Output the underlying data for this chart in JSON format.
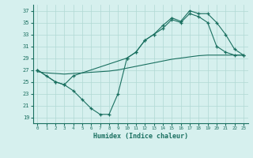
{
  "background_color": "#d6f0ee",
  "grid_color": "#b0d8d4",
  "line_color": "#1a7060",
  "xlim": [
    -0.5,
    23.5
  ],
  "ylim": [
    18.0,
    38.0
  ],
  "xticks": [
    0,
    1,
    2,
    3,
    4,
    5,
    6,
    7,
    8,
    9,
    10,
    11,
    12,
    13,
    14,
    15,
    16,
    17,
    18,
    19,
    20,
    21,
    22,
    23
  ],
  "yticks": [
    19,
    21,
    23,
    25,
    27,
    29,
    31,
    33,
    35,
    37
  ],
  "xlabel": "Humidex (Indice chaleur)",
  "series1_x": [
    0,
    1,
    2,
    3,
    4,
    5,
    6,
    7,
    8,
    9,
    10,
    11,
    12,
    13,
    14,
    15,
    16,
    17,
    18,
    19,
    20,
    21,
    22,
    23
  ],
  "series1_y": [
    27,
    26,
    25,
    24.5,
    23.5,
    22,
    20.5,
    19.5,
    19.5,
    23,
    29,
    30,
    32,
    33,
    34,
    35.5,
    35,
    36.5,
    36,
    35,
    31,
    30,
    29.5,
    29.5
  ],
  "series2_x": [
    0,
    2,
    3,
    4,
    10,
    11,
    12,
    13,
    14,
    15,
    16,
    17,
    18,
    19,
    20,
    21,
    22,
    23
  ],
  "series2_y": [
    27,
    25,
    24.5,
    26,
    29,
    30,
    32,
    33,
    34.5,
    35.8,
    35.2,
    37,
    36.5,
    36.5,
    35,
    33,
    30.5,
    29.5
  ],
  "series3_x": [
    0,
    1,
    2,
    3,
    4,
    5,
    6,
    7,
    8,
    9,
    10,
    11,
    12,
    13,
    14,
    15,
    16,
    17,
    18,
    19,
    20,
    21,
    22,
    23
  ],
  "series3_y": [
    26.7,
    26.5,
    26.4,
    26.3,
    26.4,
    26.5,
    26.6,
    26.7,
    26.8,
    27.0,
    27.3,
    27.6,
    27.9,
    28.2,
    28.5,
    28.8,
    29.0,
    29.2,
    29.4,
    29.5,
    29.5,
    29.5,
    29.5,
    29.5
  ]
}
